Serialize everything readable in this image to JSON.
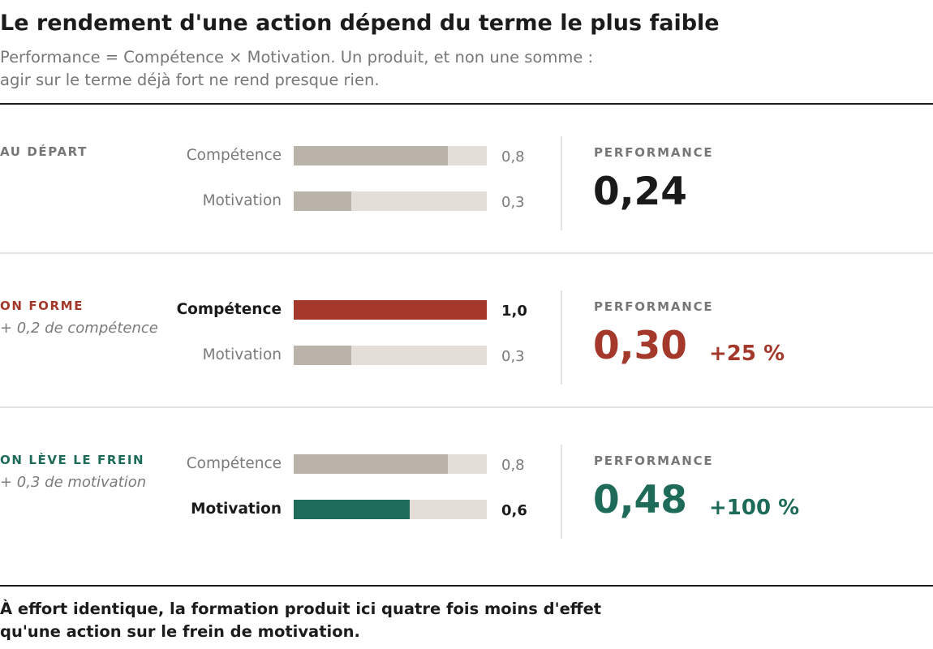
{
  "header": {
    "title": "Le rendement d'une action dépend du terme le plus faible",
    "subtitle_line1": "Performance = Compétence × Motivation. Un produit, et non une somme :",
    "subtitle_line2": "agir sur le terme déjà fort ne rend presque rien."
  },
  "colors": {
    "neutral_fill": "#bab3aa",
    "track": "#e3dfd8",
    "red": "#a3382b",
    "green": "#1e6b5a",
    "dark": "#1a1a1a",
    "grey_text": "#777777"
  },
  "scenarios": [
    {
      "label": "AU DÉPART",
      "note": "",
      "accent": "#777777",
      "bars": [
        {
          "name": "Compétence",
          "value": 0.8,
          "display": "0,8",
          "emphasis": false
        },
        {
          "name": "Motivation",
          "value": 0.3,
          "display": "0,3",
          "emphasis": false
        }
      ],
      "perf_label": "PERFORMANCE",
      "perf_value": "0,24",
      "perf_color": "#1a1a1a",
      "perf_delta": ""
    },
    {
      "label": "ON FORME",
      "note": "+ 0,2 de compétence",
      "accent": "#a3382b",
      "bars": [
        {
          "name": "Compétence",
          "value": 1.0,
          "display": "1,0",
          "emphasis": true
        },
        {
          "name": "Motivation",
          "value": 0.3,
          "display": "0,3",
          "emphasis": false
        }
      ],
      "perf_label": "PERFORMANCE",
      "perf_value": "0,30",
      "perf_color": "#a3382b",
      "perf_delta": "+25 %"
    },
    {
      "label": "ON LÈVE LE FREIN",
      "note": "+ 0,3 de motivation",
      "accent": "#1e6b5a",
      "bars": [
        {
          "name": "Compétence",
          "value": 0.8,
          "display": "0,8",
          "emphasis": false
        },
        {
          "name": "Motivation",
          "value": 0.6,
          "display": "0,6",
          "emphasis": true
        }
      ],
      "perf_label": "PERFORMANCE",
      "perf_value": "0,48",
      "perf_color": "#1e6b5a",
      "perf_delta": "+100 %"
    }
  ],
  "footer": {
    "line1": "À effort identique, la formation produit ici quatre fois moins d'effet",
    "line2": "qu'une action sur le frein de motivation."
  },
  "chart_data": {
    "type": "bar",
    "title": "Le rendement d'une action dépend du terme le plus faible",
    "subtitle": "Performance = Compétence × Motivation. Un produit, et non une somme : agir sur le terme déjà fort ne rend presque rien.",
    "categories": [
      "AU DÉPART",
      "ON FORME",
      "ON LÈVE LE FREIN"
    ],
    "series": [
      {
        "name": "Compétence",
        "values": [
          0.8,
          1.0,
          0.8
        ]
      },
      {
        "name": "Motivation",
        "values": [
          0.3,
          0.3,
          0.6
        ]
      }
    ],
    "performance": [
      0.24,
      0.3,
      0.48
    ],
    "performance_change": [
      "",
      "+25 %",
      "+100 %"
    ],
    "xlim": [
      0,
      1
    ],
    "orientation": "horizontal",
    "grid": false,
    "legend": "none"
  }
}
